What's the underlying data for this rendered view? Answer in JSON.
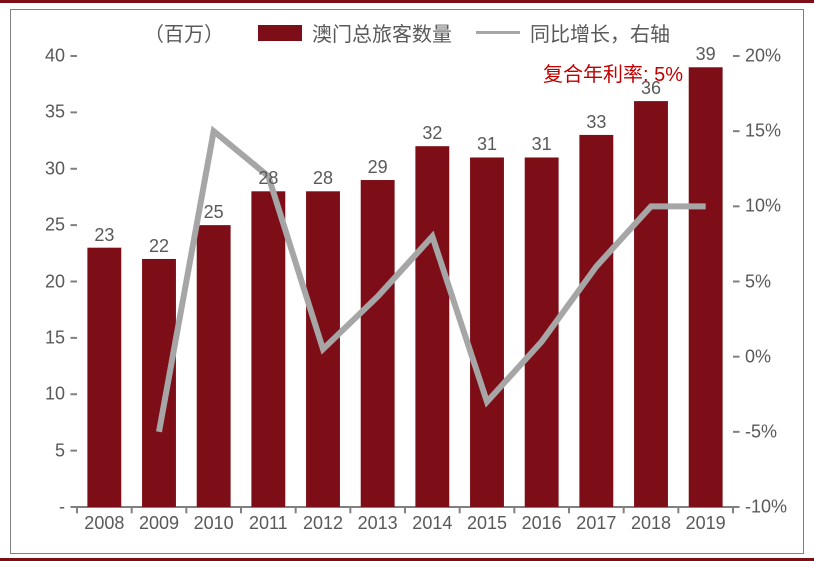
{
  "chart": {
    "type": "bar+line",
    "unit_label": "（百万）",
    "legend_bar": "澳门总旅客数量",
    "legend_line": "同比增长，右轴",
    "cagr_label": "复合年利率:",
    "cagr_value": "5%",
    "categories": [
      "2008",
      "2009",
      "2010",
      "2011",
      "2012",
      "2013",
      "2014",
      "2015",
      "2016",
      "2017",
      "2018",
      "2019"
    ],
    "bar_values": [
      23,
      22,
      25,
      28,
      28,
      29,
      32,
      31,
      31,
      33,
      36,
      39
    ],
    "line_values": [
      null,
      -5,
      15,
      12,
      0.5,
      4,
      8,
      -3,
      1,
      6,
      10,
      10
    ],
    "y_left": {
      "min": 0,
      "max": 40,
      "step": 5,
      "dash_label": "-"
    },
    "y_right": {
      "min": -10,
      "max": 20,
      "step": 5,
      "suffix": "%"
    },
    "colors": {
      "bar": "#7d0e17",
      "line": "#a6a6a6",
      "axis": "#808080",
      "tick_text": "#595959",
      "cagr_text": "#c00000",
      "background": "#ffffff",
      "frame_rule": "#7d0e17"
    },
    "style": {
      "bar_width_ratio": 0.62,
      "line_width": 3,
      "tick_len": 6,
      "font_size_axis": 18,
      "font_size_legend": 20,
      "font_size_barlabel": 18
    }
  }
}
